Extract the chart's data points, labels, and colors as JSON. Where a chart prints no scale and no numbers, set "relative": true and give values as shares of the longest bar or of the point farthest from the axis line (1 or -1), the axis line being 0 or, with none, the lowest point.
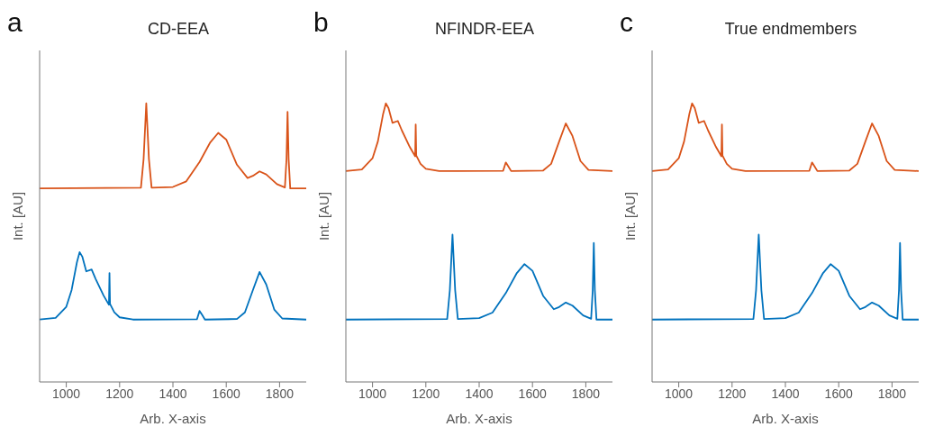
{
  "chart_data": [
    {
      "type": "line",
      "title": "CD-EEA",
      "annotations": [
        "a"
      ],
      "xlabel": "Arb. X-axis",
      "ylabel": "Int. [AU]",
      "relative": true,
      "xlim": [
        900,
        1900
      ],
      "xticks": [
        1000,
        1200,
        1400,
        1600,
        1800
      ],
      "series": [
        {
          "color": "#d95319",
          "x": [
            900,
            1280,
            1290,
            1300,
            1310,
            1320,
            1400,
            1450,
            1500,
            1540,
            1570,
            1600,
            1640,
            1680,
            1700,
            1725,
            1750,
            1790,
            1820,
            1826,
            1830,
            1834,
            1840,
            1900
          ],
          "values": [
            0.695,
            0.697,
            0.8,
            1.0,
            0.8,
            0.697,
            0.7,
            0.72,
            0.79,
            0.86,
            0.894,
            0.87,
            0.78,
            0.732,
            0.74,
            0.756,
            0.745,
            0.71,
            0.698,
            0.8,
            0.97,
            0.8,
            0.695,
            0.695
          ]
        },
        {
          "color": "#0072bd",
          "x": [
            900,
            960,
            1000,
            1020,
            1040,
            1050,
            1060,
            1075,
            1095,
            1110,
            1140,
            1160,
            1162,
            1164,
            1180,
            1200,
            1250,
            1490,
            1500,
            1510,
            1520,
            1640,
            1670,
            1700,
            1725,
            1750,
            1780,
            1810,
            1900
          ],
          "values": [
            0.224,
            0.23,
            0.27,
            0.33,
            0.43,
            0.466,
            0.45,
            0.397,
            0.404,
            0.37,
            0.31,
            0.277,
            0.391,
            0.28,
            0.25,
            0.232,
            0.224,
            0.225,
            0.255,
            0.24,
            0.224,
            0.226,
            0.25,
            0.33,
            0.395,
            0.35,
            0.26,
            0.228,
            0.224
          ]
        }
      ]
    },
    {
      "type": "line",
      "title": "NFINDR-EEA",
      "annotations": [
        "b"
      ],
      "xlabel": "Arb. X-axis",
      "ylabel": "Int. [AU]",
      "relative": true,
      "xlim": [
        900,
        1900
      ],
      "xticks": [
        1000,
        1200,
        1400,
        1600,
        1800
      ],
      "series": [
        {
          "color": "#d95319",
          "x": [
            900,
            960,
            1000,
            1020,
            1040,
            1050,
            1060,
            1075,
            1095,
            1110,
            1140,
            1160,
            1162,
            1164,
            1180,
            1200,
            1250,
            1490,
            1500,
            1510,
            1520,
            1640,
            1670,
            1700,
            1725,
            1750,
            1780,
            1810,
            1900
          ],
          "values": [
            0.757,
            0.763,
            0.803,
            0.863,
            0.963,
            1.0,
            0.983,
            0.93,
            0.937,
            0.903,
            0.843,
            0.81,
            0.924,
            0.813,
            0.783,
            0.765,
            0.757,
            0.758,
            0.788,
            0.773,
            0.757,
            0.759,
            0.783,
            0.863,
            0.928,
            0.883,
            0.793,
            0.761,
            0.757
          ]
        },
        {
          "color": "#0072bd",
          "x": [
            900,
            1280,
            1290,
            1300,
            1310,
            1320,
            1400,
            1450,
            1500,
            1540,
            1570,
            1600,
            1640,
            1680,
            1700,
            1725,
            1750,
            1790,
            1820,
            1826,
            1830,
            1834,
            1840,
            1900
          ],
          "values": [
            0.224,
            0.226,
            0.329,
            0.529,
            0.329,
            0.226,
            0.229,
            0.249,
            0.319,
            0.389,
            0.423,
            0.399,
            0.309,
            0.261,
            0.269,
            0.285,
            0.274,
            0.239,
            0.227,
            0.329,
            0.499,
            0.329,
            0.224,
            0.224
          ]
        }
      ]
    },
    {
      "type": "line",
      "title": "True endmembers",
      "annotations": [
        "c"
      ],
      "xlabel": "Arb. X-axis",
      "ylabel": "Int. [AU]",
      "relative": true,
      "xlim": [
        900,
        1900
      ],
      "xticks": [
        1000,
        1200,
        1400,
        1600,
        1800
      ],
      "series": [
        {
          "color": "#d95319",
          "x": [
            900,
            960,
            1000,
            1020,
            1040,
            1050,
            1060,
            1075,
            1095,
            1110,
            1140,
            1160,
            1162,
            1164,
            1180,
            1200,
            1250,
            1490,
            1500,
            1510,
            1520,
            1640,
            1670,
            1700,
            1725,
            1750,
            1780,
            1810,
            1900
          ],
          "values": [
            0.757,
            0.763,
            0.803,
            0.863,
            0.963,
            1.0,
            0.983,
            0.93,
            0.937,
            0.903,
            0.843,
            0.81,
            0.924,
            0.813,
            0.783,
            0.765,
            0.757,
            0.758,
            0.788,
            0.773,
            0.757,
            0.759,
            0.783,
            0.863,
            0.928,
            0.883,
            0.793,
            0.761,
            0.757
          ]
        },
        {
          "color": "#0072bd",
          "x": [
            900,
            1280,
            1290,
            1300,
            1310,
            1320,
            1400,
            1450,
            1500,
            1540,
            1570,
            1600,
            1640,
            1680,
            1700,
            1725,
            1750,
            1790,
            1820,
            1826,
            1830,
            1834,
            1840,
            1900
          ],
          "values": [
            0.224,
            0.226,
            0.329,
            0.529,
            0.329,
            0.226,
            0.229,
            0.249,
            0.319,
            0.389,
            0.423,
            0.399,
            0.309,
            0.261,
            0.269,
            0.285,
            0.274,
            0.239,
            0.227,
            0.329,
            0.499,
            0.329,
            0.224,
            0.224
          ]
        }
      ]
    }
  ]
}
